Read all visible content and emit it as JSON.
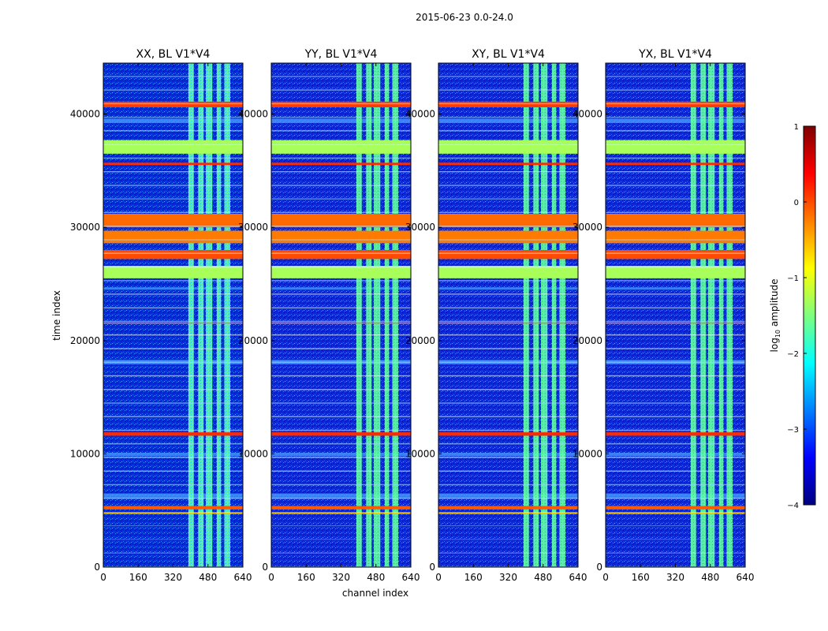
{
  "chart_data": {
    "type": "heatmap",
    "suptitle": "2015-06-23 0.0-24.0",
    "xlabel": "channel index",
    "ylabel": "time index",
    "xlim": [
      0,
      640
    ],
    "ylim": [
      0,
      44500
    ],
    "xticks": [
      "0",
      "160",
      "320",
      "480",
      "640"
    ],
    "yticks": [
      {
        "value": 0,
        "label": "0"
      },
      {
        "value": 10000,
        "label": "10000"
      },
      {
        "value": 20000,
        "label": "20000"
      },
      {
        "value": 30000,
        "label": "30000"
      },
      {
        "value": 40000,
        "label": "40000"
      }
    ],
    "panels": [
      {
        "title": "XX, BL V1*V4"
      },
      {
        "title": "YY, BL V1*V4"
      },
      {
        "title": "XY, BL V1*V4"
      },
      {
        "title": "YX, BL V1*V4"
      }
    ],
    "colorbar": {
      "label": "log10 amplitude",
      "label_main": "log",
      "label_sub": "10",
      "label_rest": " amplitude",
      "range": [
        -4,
        1
      ],
      "ticks": [
        {
          "value": 1,
          "label": "1"
        },
        {
          "value": 0,
          "label": "0"
        },
        {
          "value": -1,
          "label": "−1"
        },
        {
          "value": -2,
          "label": "−2"
        },
        {
          "value": -3,
          "label": "−3"
        },
        {
          "value": -4,
          "label": "−4"
        }
      ],
      "colors": [
        "#00007f",
        "#0000ff",
        "#007fff",
        "#00ffff",
        "#7fff7f",
        "#ffff00",
        "#ff7f00",
        "#ff0000",
        "#7f0000"
      ]
    },
    "background_level": "#0a2ad8",
    "bright_channel_bands": [
      [
        390,
        415
      ],
      [
        435,
        460
      ],
      [
        470,
        500
      ],
      [
        520,
        540
      ],
      [
        555,
        582
      ]
    ],
    "hot_time_rows": [
      {
        "t0": 40600,
        "t1": 41100,
        "color": "#ff3a00"
      },
      {
        "t0": 36500,
        "t1": 37700,
        "color": "#a8ff5a"
      },
      {
        "t0": 35500,
        "t1": 35700,
        "color": "#ff2a00"
      },
      {
        "t0": 30000,
        "t1": 31200,
        "color": "#ff6a00"
      },
      {
        "t0": 28600,
        "t1": 29700,
        "color": "#ff7a00"
      },
      {
        "t0": 27200,
        "t1": 28000,
        "color": "#ff4a00"
      },
      {
        "t0": 25500,
        "t1": 26600,
        "color": "#a8ff5a"
      },
      {
        "t0": 21500,
        "t1": 21600,
        "color": "#ff7f3a"
      },
      {
        "t0": 11600,
        "t1": 11900,
        "color": "#ff2a00"
      },
      {
        "t0": 5100,
        "t1": 5400,
        "color": "#ff5a00"
      },
      {
        "t0": 4700,
        "t1": 4800,
        "color": "#ffcc00"
      }
    ],
    "light_time_rows": [
      {
        "t0": 39200,
        "t1": 39600
      },
      {
        "t0": 24500,
        "t1": 24700
      },
      {
        "t0": 17900,
        "t1": 18300
      },
      {
        "t0": 9800,
        "t1": 10100
      },
      {
        "t0": 6100,
        "t1": 6500
      }
    ]
  }
}
